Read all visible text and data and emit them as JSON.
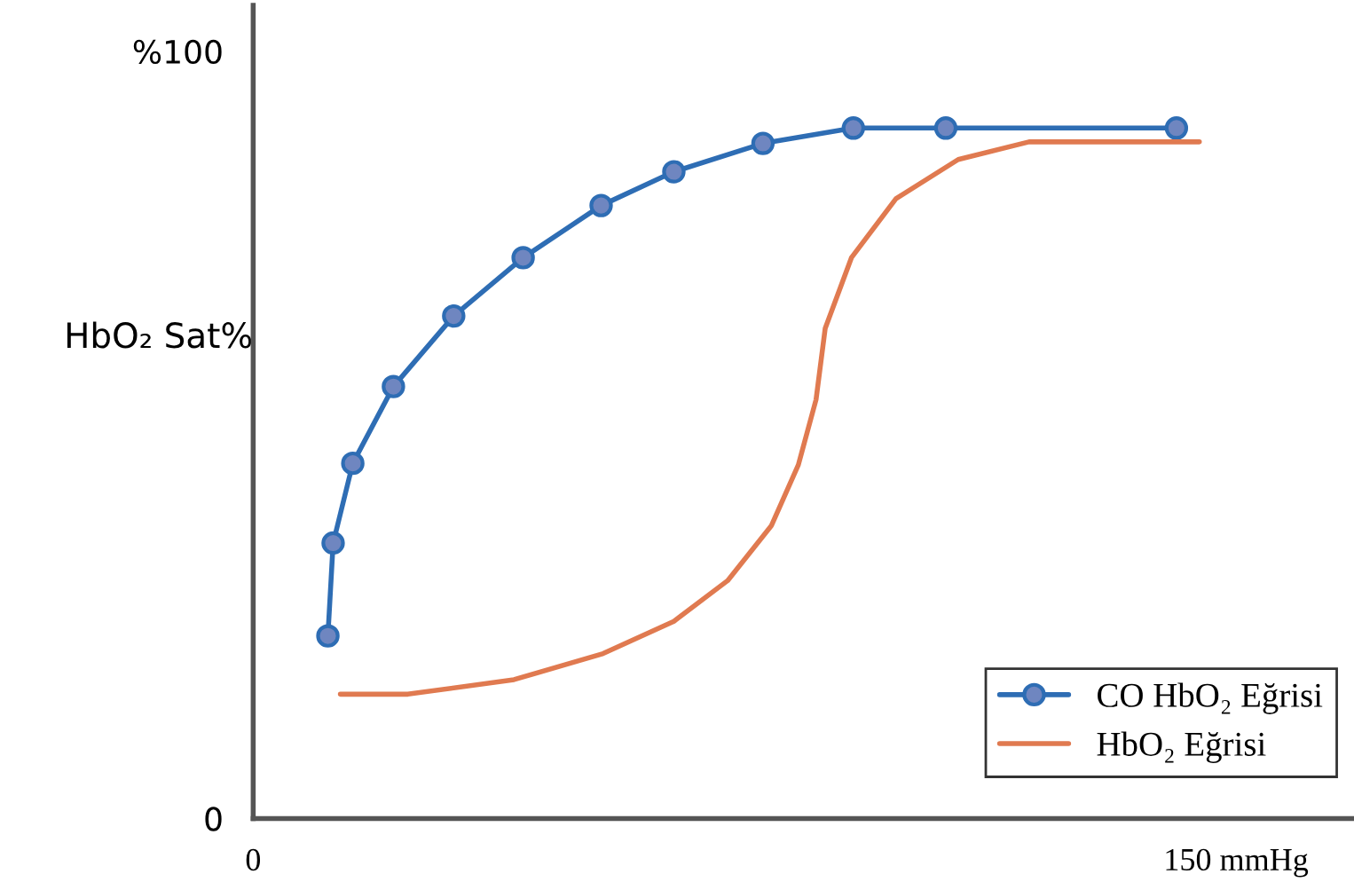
{
  "chart_data": {
    "type": "line",
    "ylabel": "HbO₂ Sat%",
    "xlim": [
      0,
      168
    ],
    "ylim": [
      0,
      106
    ],
    "xticks": [
      0,
      {
        "value": 150,
        "label": "150 mmHg"
      }
    ],
    "yticks": [
      0,
      {
        "value": 100,
        "label": "%100"
      }
    ],
    "grid": false,
    "legend": "bottom right",
    "series": [
      {
        "name": "CO HbO₂ Eğrisi",
        "color": "#2e6db4",
        "marker": "circle",
        "x": [
          11.4,
          12.2,
          15.2,
          21.4,
          30.6,
          41.2,
          53.1,
          64.2,
          77.8,
          91.6,
          105.7,
          140.9
        ],
        "values": [
          23.8,
          35.9,
          46.3,
          56.3,
          65.5,
          73.1,
          79.9,
          84.3,
          88.0,
          90.0,
          90.0,
          90.0
        ]
      },
      {
        "name": "HbO₂ Eğrisi",
        "color": "#e07a50",
        "marker": "none",
        "x": [
          13.3,
          23.6,
          39.8,
          53.4,
          64.2,
          72.4,
          79.1,
          83.2,
          85.9,
          87.3,
          91.3,
          98.1,
          107.6,
          118.4,
          129.3,
          144.4
        ],
        "values": [
          16.2,
          16.2,
          18.1,
          21.5,
          25.7,
          31.0,
          38.2,
          46.1,
          54.6,
          63.9,
          73.1,
          80.8,
          85.9,
          88.2,
          88.2,
          88.2
        ]
      }
    ]
  }
}
